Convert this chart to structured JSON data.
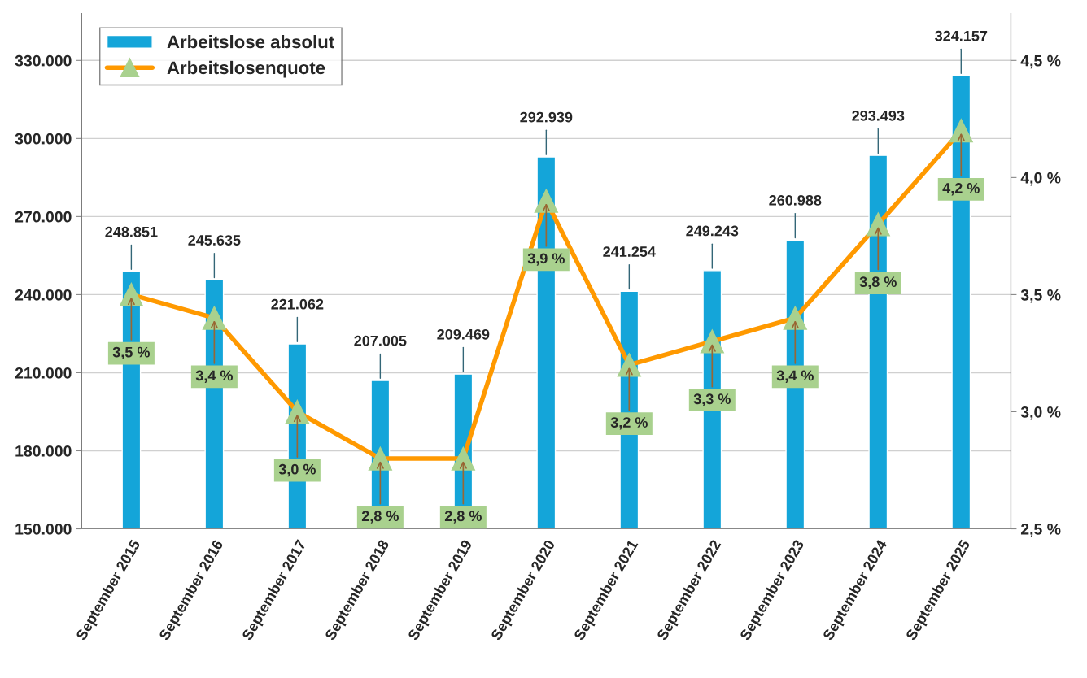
{
  "chart_data": {
    "type": "bar",
    "categories": [
      "September 2015",
      "September 2016",
      "September 2017",
      "September 2018",
      "September 2019",
      "September 2020",
      "September 2021",
      "September 2022",
      "September 2023",
      "September 2024",
      "September 2025"
    ],
    "series": [
      {
        "name": "Arbeitslose absolut",
        "color": "#14a5d9",
        "values": [
          248851,
          245635,
          221062,
          207005,
          209469,
          292939,
          241254,
          249243,
          260988,
          293493,
          324157
        ],
        "value_labels": [
          "248.851",
          "245.635",
          "221.062",
          "207.005",
          "209.469",
          "292.939",
          "241.254",
          "249.243",
          "260.988",
          "293.493",
          "324.157"
        ]
      },
      {
        "name": "Arbeitslosenquote",
        "type": "line",
        "axis": "y2",
        "color": "#ff9900",
        "marker": "triangle",
        "values": [
          3.5,
          3.4,
          3.0,
          2.8,
          2.8,
          3.9,
          3.2,
          3.3,
          3.4,
          3.8,
          4.2
        ],
        "value_labels": [
          "3,5 %",
          "3,4 %",
          "3,0 %",
          "2,8 %",
          "2,8 %",
          "3,9 %",
          "3,2 %",
          "3,3 %",
          "3,4 %",
          "3,8 %",
          "4,2 %"
        ]
      }
    ],
    "ylim": [
      150000,
      348000
    ],
    "yticks": [
      {
        "value": 150000,
        "label": "150.000"
      },
      {
        "value": 180000,
        "label": "180.000"
      },
      {
        "value": 210000,
        "label": "210.000"
      },
      {
        "value": 240000,
        "label": "240.000"
      },
      {
        "value": 270000,
        "label": "270.000"
      },
      {
        "value": 300000,
        "label": "300.000"
      },
      {
        "value": 330000,
        "label": "330.000"
      }
    ],
    "y2lim": [
      2.5,
      4.7
    ],
    "y2ticks": [
      {
        "value": 2.5,
        "label": "2,5 %"
      },
      {
        "value": 3.0,
        "label": "3,0 %"
      },
      {
        "value": 3.5,
        "label": "3,5 %"
      },
      {
        "value": 4.0,
        "label": "4,0 %"
      },
      {
        "value": 4.5,
        "label": "4,5 %"
      }
    ],
    "grid": "y",
    "legend": "top left"
  }
}
